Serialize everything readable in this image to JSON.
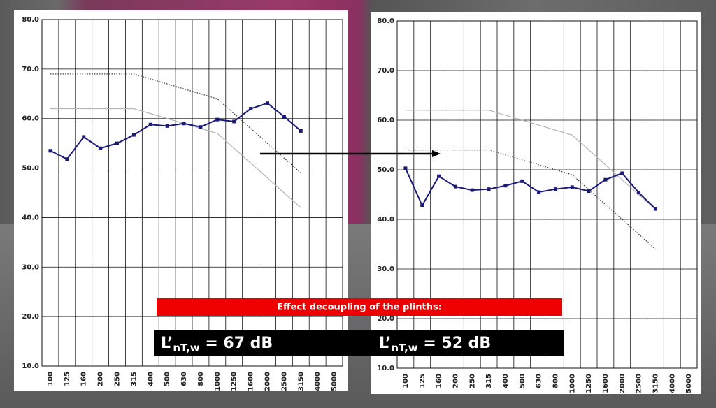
{
  "chart_data": [
    {
      "type": "line",
      "categories": [
        "100",
        "125",
        "160",
        "200",
        "250",
        "315",
        "400",
        "500",
        "630",
        "800",
        "1000",
        "1250",
        "1600",
        "2000",
        "2500",
        "3150",
        "4000",
        "5000"
      ],
      "ylim": [
        10,
        80
      ],
      "yticks": [
        {
          "value": 10,
          "label": "10.0"
        },
        {
          "value": 20,
          "label": "20.0"
        },
        {
          "value": 30,
          "label": "30.0"
        },
        {
          "value": 40,
          "label": "40.0"
        },
        {
          "value": 50,
          "label": "50.0"
        },
        {
          "value": 60,
          "label": "60.0"
        },
        {
          "value": 70,
          "label": "70.0"
        },
        {
          "value": 80,
          "label": "80.0"
        }
      ],
      "grid": true,
      "series": [
        {
          "color": "#b4b4b4",
          "style": "solid",
          "values": [
            62,
            62,
            62,
            62,
            62,
            62,
            61,
            60,
            59,
            58,
            57,
            54,
            51,
            48,
            45,
            42,
            null,
            null
          ]
        },
        {
          "color": "#333333",
          "style": "dotted",
          "values": [
            69,
            69,
            69,
            69,
            69,
            69,
            68,
            67,
            66,
            65,
            64,
            61,
            58,
            55,
            52,
            49,
            null,
            null
          ]
        },
        {
          "color": "#1a1a7a",
          "style": "markers",
          "values": [
            53.5,
            51.8,
            56.3,
            54,
            55,
            56.7,
            58.8,
            58.5,
            59,
            58.3,
            59.8,
            59.4,
            62,
            63.1,
            60.4,
            57.5,
            null,
            null
          ]
        }
      ]
    },
    {
      "type": "line",
      "categories": [
        "100",
        "125",
        "160",
        "200",
        "250",
        "315",
        "400",
        "500",
        "630",
        "800",
        "1000",
        "1250",
        "1600",
        "2000",
        "2500",
        "3150",
        "4000",
        "5000"
      ],
      "ylim": [
        10,
        80
      ],
      "yticks": [
        {
          "value": 10,
          "label": "10.0"
        },
        {
          "value": 20,
          "label": "20.0"
        },
        {
          "value": 30,
          "label": "30.0"
        },
        {
          "value": 40,
          "label": "40.0"
        },
        {
          "value": 50,
          "label": "50.0"
        },
        {
          "value": 60,
          "label": "60.0"
        },
        {
          "value": 70,
          "label": "70.0"
        },
        {
          "value": 80,
          "label": "80.0"
        }
      ],
      "grid": true,
      "series": [
        {
          "color": "#b4b4b4",
          "style": "solid",
          "values": [
            62,
            62,
            62,
            62,
            62,
            62,
            61,
            60,
            59,
            58,
            57,
            54,
            51,
            48,
            45,
            42,
            null,
            null
          ]
        },
        {
          "color": "#333333",
          "style": "dotted",
          "values": [
            54,
            54,
            54,
            54,
            54,
            54,
            53,
            52,
            51,
            50,
            49,
            46,
            43,
            40,
            37,
            34,
            null,
            null
          ]
        },
        {
          "color": "#1a1a7a",
          "style": "markers",
          "values": [
            50.3,
            42.8,
            48.7,
            46.6,
            45.9,
            46.1,
            46.8,
            47.7,
            45.5,
            46.1,
            46.5,
            45.7,
            48,
            49.3,
            45.4,
            42.1,
            null,
            null
          ]
        }
      ]
    }
  ],
  "banner": {
    "title": "Effect decoupling of the plinths:",
    "left": {
      "prefix": "L’",
      "sub": "nT,w",
      "value": " = 67 dB"
    },
    "right": {
      "prefix": "L’",
      "sub": "nT,w",
      "value": " = 52 dB"
    }
  }
}
